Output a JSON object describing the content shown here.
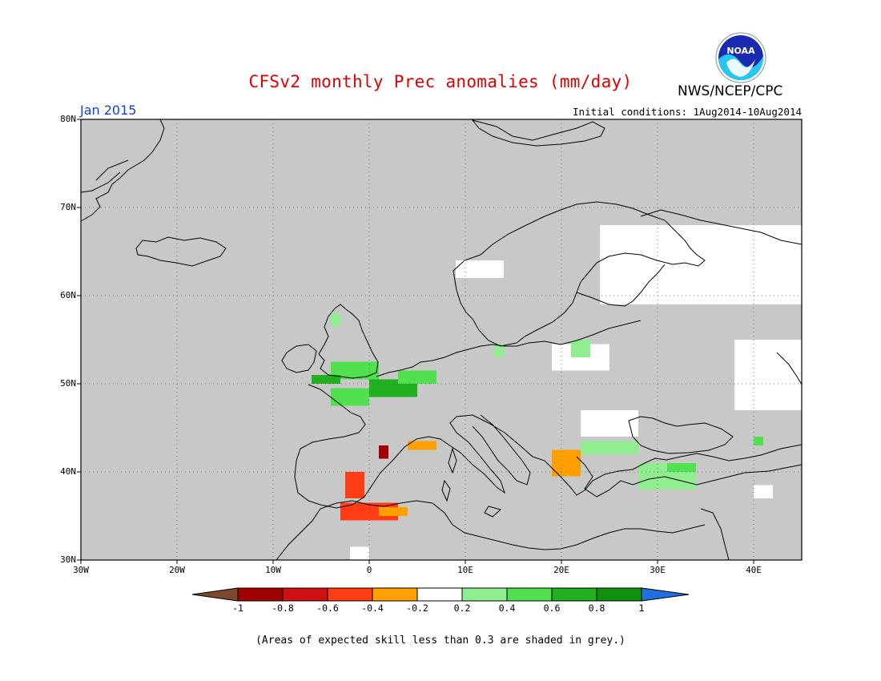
{
  "title": "CFSv2 monthly Prec anomalies (mm/day)",
  "agency": "NWS/NCEP/CPC",
  "logo_text": "NOAA",
  "month_label": "Jan 2015",
  "initial_conditions": "Initial conditions: 1Aug2014-10Aug2014",
  "footnote": "(Areas of expected skill less than 0.3 are shaded in grey.)",
  "map": {
    "lon_range": [
      -30,
      45
    ],
    "lat_range": [
      30,
      80
    ],
    "lat_ticks": [
      "30N",
      "40N",
      "50N",
      "60N",
      "70N",
      "80N"
    ],
    "lon_ticks": [
      "30W",
      "20W",
      "10W",
      "0",
      "10E",
      "20E",
      "30E",
      "40E"
    ],
    "grid": true,
    "background_color": "#c8c8c8",
    "coastline_color": "#000000"
  },
  "colorbar": {
    "ticks": [
      "-1",
      "-0.8",
      "-0.6",
      "-0.4",
      "-0.2",
      "0.2",
      "0.4",
      "0.6",
      "0.8",
      "1"
    ],
    "colors": {
      "below_-1": "#7a4a2a",
      "-1_-0.8": "#a00000",
      "-0.8_-0.6": "#d01010",
      "-0.6_-0.4": "#ff3c14",
      "-0.4_-0.2": "#ffa000",
      "-0.2_0.2": "#ffffff",
      "0.2_0.4": "#90ee90",
      "0.4_0.6": "#50e050",
      "0.6_0.8": "#20b020",
      "0.8_1": "#109010",
      "above_1": "#2070e0"
    }
  },
  "anomaly_regions": [
    {
      "region": "southern England",
      "lon": [
        -4,
        1
      ],
      "lat": [
        50.5,
        52.5
      ],
      "class": "0.4_0.6"
    },
    {
      "region": "English Channel",
      "lon": [
        -6,
        -3
      ],
      "lat": [
        50,
        51
      ],
      "class": "0.6_0.8"
    },
    {
      "region": "northern France",
      "lon": [
        0,
        5
      ],
      "lat": [
        48.5,
        50.5
      ],
      "class": "0.6_0.8"
    },
    {
      "region": "Benelux",
      "lon": [
        3,
        7
      ],
      "lat": [
        50,
        51.5
      ],
      "class": "0.4_0.6"
    },
    {
      "region": "Brittany",
      "lon": [
        -4,
        0
      ],
      "lat": [
        47.5,
        49.5
      ],
      "class": "0.4_0.6"
    },
    {
      "region": "Scotland",
      "lon": [
        -4,
        -3
      ],
      "lat": [
        56.5,
        58
      ],
      "class": "0.2_0.4"
    },
    {
      "region": "Gulf of Lion",
      "lon": [
        4,
        7
      ],
      "lat": [
        42.5,
        43.5
      ],
      "class": "-0.4_-0.2"
    },
    {
      "region": "Balearic Sea",
      "lon": [
        1,
        2
      ],
      "lat": [
        41.5,
        43
      ],
      "class": "-1_-0.8"
    },
    {
      "region": "southeast Spain",
      "lon": [
        -2.5,
        -0.5
      ],
      "lat": [
        37,
        40
      ],
      "class": "-0.6_-0.4"
    },
    {
      "region": "Algeria coast",
      "lon": [
        -3,
        3
      ],
      "lat": [
        34.5,
        36.5
      ],
      "class": "-0.6_-0.4"
    },
    {
      "region": "Algeria inland",
      "lon": [
        1,
        4
      ],
      "lat": [
        35,
        36
      ],
      "class": "-0.4_-0.2"
    },
    {
      "region": "Albania",
      "lon": [
        19,
        22
      ],
      "lat": [
        39.5,
        42.5
      ],
      "class": "-0.4_-0.2"
    },
    {
      "region": "Bulgaria",
      "lon": [
        22,
        28
      ],
      "lat": [
        42,
        43.5
      ],
      "class": "0.2_0.4"
    },
    {
      "region": "Anatolia",
      "lon": [
        28,
        34
      ],
      "lat": [
        38,
        41
      ],
      "class": "0.2_0.4"
    },
    {
      "region": "Black Sea coast",
      "lon": [
        31,
        34
      ],
      "lat": [
        40,
        41
      ],
      "class": "0.4_0.6"
    },
    {
      "region": "Baltic",
      "lon": [
        21,
        23
      ],
      "lat": [
        53,
        55
      ],
      "class": "0.2_0.4"
    },
    {
      "region": "Poland coast",
      "lon": [
        13,
        14
      ],
      "lat": [
        53,
        54.5
      ],
      "class": "0.2_0.4"
    },
    {
      "region": "Caucasus",
      "lon": [
        40,
        41
      ],
      "lat": [
        43,
        44
      ],
      "class": "0.4_0.6"
    }
  ],
  "neutral_regions": [
    {
      "region": "northwest Russia",
      "lon": [
        24,
        45
      ],
      "lat": [
        59,
        68
      ]
    },
    {
      "region": "Belarus",
      "lon": [
        19,
        25
      ],
      "lat": [
        51.5,
        54.5
      ]
    },
    {
      "region": "Romania",
      "lon": [
        22,
        28
      ],
      "lat": [
        44,
        47
      ]
    },
    {
      "region": "western Russia",
      "lon": [
        38,
        45
      ],
      "lat": [
        47,
        55
      ]
    },
    {
      "region": "Norway coast",
      "lon": [
        9,
        14
      ],
      "lat": [
        62,
        64
      ]
    },
    {
      "region": "Sahara",
      "lon": [
        -2,
        0
      ],
      "lat": [
        30,
        31.5
      ]
    },
    {
      "region": "Turkey east",
      "lon": [
        40,
        42
      ],
      "lat": [
        37,
        38.5
      ]
    }
  ]
}
